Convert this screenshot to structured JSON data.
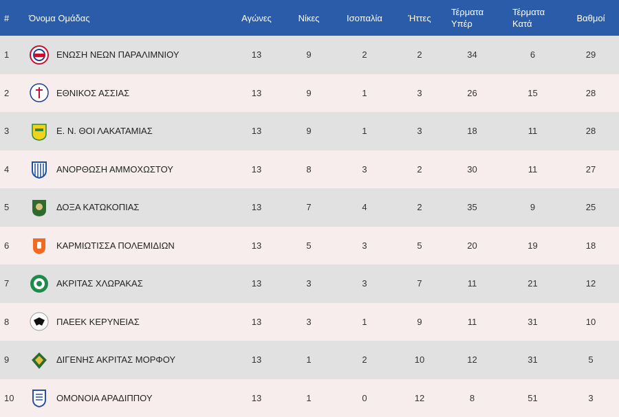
{
  "table": {
    "headers": {
      "rank": "#",
      "team": "Όνομα Ομάδας",
      "played": "Αγώνες",
      "wins": "Νίκες",
      "draws": "Ισοπαλία",
      "losses": "Ήττες",
      "goals_for_line1": "Τέρματα",
      "goals_for_line2": "Υπέρ",
      "goals_against_line1": "Τέρματα",
      "goals_against_line2": "Κατά",
      "points": "Βαθμοί"
    },
    "rows": [
      {
        "rank": "1",
        "team": "ΕΝΩΣΗ ΝΕΩΝ ΠΑΡΑΛΙΜΝΙΟΥ",
        "logo": "enp-crest-icon",
        "logo_color": "#c8102e",
        "played": "13",
        "wins": "9",
        "draws": "2",
        "losses": "2",
        "gf": "34",
        "ga": "6",
        "pts": "29"
      },
      {
        "rank": "2",
        "team": "ΕΘΝΙΚΟΣ ΑΣΣΙΑΣ",
        "logo": "ethnikos-assias-crest-icon",
        "logo_color": "#1b3f8f",
        "played": "13",
        "wins": "9",
        "draws": "1",
        "losses": "3",
        "gf": "26",
        "ga": "15",
        "pts": "28"
      },
      {
        "rank": "3",
        "team": "Ε. Ν. ΘΟΙ ΛΑΚΑΤΑΜΙΑΣ",
        "logo": "thoi-crest-icon",
        "logo_color": "#f2d21b",
        "played": "13",
        "wins": "9",
        "draws": "1",
        "losses": "3",
        "gf": "18",
        "ga": "11",
        "pts": "28"
      },
      {
        "rank": "4",
        "team": "ΑΝΟΡΘΩΣΗ ΑΜΜΟΧΩΣΤΟΥ",
        "logo": "anorthosis-crest-icon",
        "logo_color": "#1c4fa0",
        "played": "13",
        "wins": "8",
        "draws": "3",
        "losses": "2",
        "gf": "30",
        "ga": "11",
        "pts": "27"
      },
      {
        "rank": "5",
        "team": "ΔΟΞΑ ΚΑΤΩΚΟΠΙΑΣ",
        "logo": "doxa-crest-icon",
        "logo_color": "#2f6b2f",
        "played": "13",
        "wins": "7",
        "draws": "4",
        "losses": "2",
        "gf": "35",
        "ga": "9",
        "pts": "25"
      },
      {
        "rank": "6",
        "team": "ΚΑΡΜΙΩΤΙΣΣΑ ΠΟΛΕΜΙΔΙΩΝ",
        "logo": "karmiotissa-crest-icon",
        "logo_color": "#f26a21",
        "played": "13",
        "wins": "5",
        "draws": "3",
        "losses": "5",
        "gf": "20",
        "ga": "19",
        "pts": "18"
      },
      {
        "rank": "7",
        "team": "ΑΚΡΙΤΑΣ ΧΛΩΡΑΚΑΣ",
        "logo": "akritas-chlorakas-crest-icon",
        "logo_color": "#1f8a4c",
        "played": "13",
        "wins": "3",
        "draws": "3",
        "losses": "7",
        "gf": "11",
        "ga": "21",
        "pts": "12"
      },
      {
        "rank": "8",
        "team": "ΠΑΕΕΚ ΚΕΡΥΝΕΙΑΣ",
        "logo": "paeek-crest-icon",
        "logo_color": "#111111",
        "played": "13",
        "wins": "3",
        "draws": "1",
        "losses": "9",
        "gf": "11",
        "ga": "31",
        "pts": "10"
      },
      {
        "rank": "9",
        "team": "ΔΙΓΕΝΗΣ ΑΚΡΙΤΑΣ ΜΟΡΦΟΥ",
        "logo": "digenis-crest-icon",
        "logo_color": "#2d6a2d",
        "played": "13",
        "wins": "1",
        "draws": "2",
        "losses": "10",
        "gf": "12",
        "ga": "31",
        "pts": "5"
      },
      {
        "rank": "10",
        "team": "ΟΜΟΝΟΙΑ ΑΡΑΔΙΠΠΟΥ",
        "logo": "omonoia-aradippou-crest-icon",
        "logo_color": "#2a4fa8",
        "played": "13",
        "wins": "1",
        "draws": "0",
        "losses": "12",
        "gf": "8",
        "ga": "51",
        "pts": "3"
      }
    ]
  },
  "colors": {
    "header_bg": "#2a5caa",
    "row_odd": "#e1e1e1",
    "row_even": "#f7eded"
  }
}
